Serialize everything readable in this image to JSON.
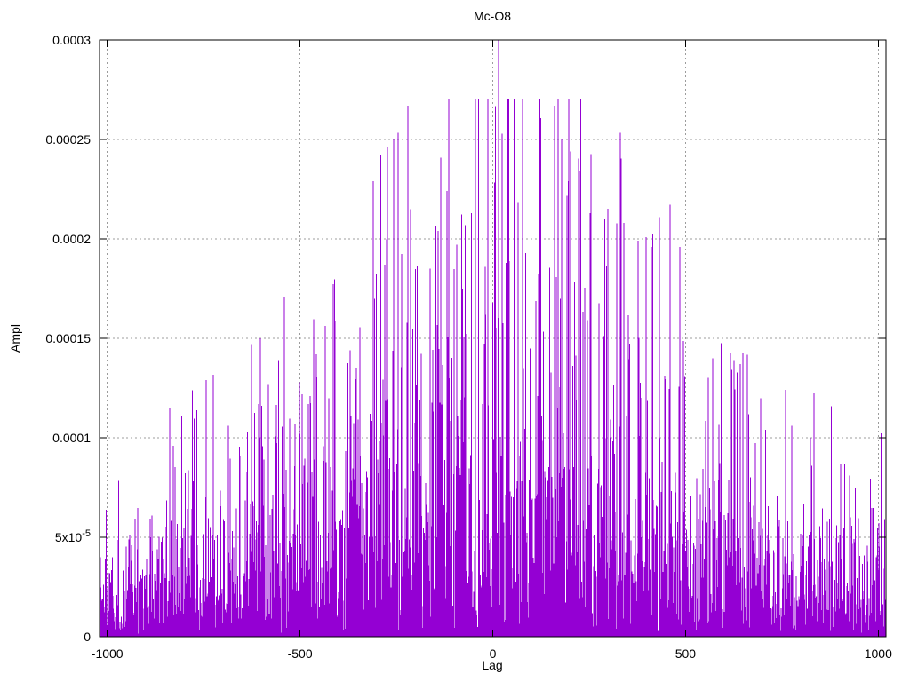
{
  "window": {
    "background": "#ffffff"
  },
  "chart_data": {
    "type": "impulses",
    "title": "Mc-O8",
    "xlabel": "Lag",
    "ylabel": "Ampl",
    "xlim": [
      -1020,
      1020
    ],
    "ylim": [
      0,
      0.0003
    ],
    "grid": true,
    "legend": "none",
    "line_color": "#9400d3",
    "grid_color": "#9c9c9c",
    "border_color": "#000000",
    "xticks": [
      {
        "v": -1000,
        "label": "-1000"
      },
      {
        "v": -500,
        "label": "-500"
      },
      {
        "v": 0,
        "label": "0"
      },
      {
        "v": 500,
        "label": "500"
      },
      {
        "v": 1000,
        "label": "1000"
      }
    ],
    "yticks": [
      {
        "v": 0,
        "label": "0"
      },
      {
        "v": 5e-05,
        "label": "5x10",
        "sup": "-5"
      },
      {
        "v": 0.0001,
        "label": "0.0001"
      },
      {
        "v": 0.00015,
        "label": "0.00015"
      },
      {
        "v": 0.0002,
        "label": "0.0002"
      },
      {
        "v": 0.00025,
        "label": "0.00025"
      },
      {
        "v": 0.0003,
        "label": "0.0003"
      }
    ],
    "series_noise": {
      "description": "dense noise floor of autocorrelation impulses, one per lag",
      "seed": 1337,
      "lag_start": -1020,
      "lag_end": 1020,
      "lag_step": 1,
      "distribution": "exponential",
      "mean_envelope": [
        [
          -1020,
          2.4e-05
        ],
        [
          -850,
          2.7e-05
        ],
        [
          -650,
          3.4e-05
        ],
        [
          -500,
          4.3e-05
        ],
        [
          -350,
          5.4e-05
        ],
        [
          -200,
          6.3e-05
        ],
        [
          -80,
          7e-05
        ],
        [
          80,
          7.2e-05
        ],
        [
          200,
          6.8e-05
        ],
        [
          320,
          6.2e-05
        ],
        [
          400,
          6e-05
        ],
        [
          450,
          5.4e-05
        ],
        [
          520,
          3.8e-05
        ],
        [
          650,
          3.4e-05
        ],
        [
          800,
          3e-05
        ],
        [
          1020,
          2.4e-05
        ]
      ],
      "tail_cap_ratio": 4.2,
      "clip_noise": 0.00027
    },
    "peaks": [
      [
        15,
        0.0003
      ],
      [
        24,
        0.000253
      ],
      [
        66,
        0.000218
      ],
      [
        123,
        0.000256
      ],
      [
        169,
        0.000232
      ],
      [
        202,
        0.000244
      ],
      [
        227,
        0.000234
      ],
      [
        252,
        0.000213
      ],
      [
        340,
        0.000208
      ],
      [
        377,
        0.000199
      ],
      [
        398,
        0.000201
      ],
      [
        412,
        0.000196
      ],
      [
        432,
        0.000211
      ],
      [
        485,
        0.000196
      ],
      [
        571,
        0.00014
      ],
      [
        626,
        0.000139
      ],
      [
        642,
        0.000137
      ],
      [
        760,
        0.000124
      ],
      [
        824,
        0.0001
      ],
      [
        940,
        7.5e-05
      ],
      [
        -20,
        0.000186
      ],
      [
        -93,
        0.000197
      ],
      [
        -119,
        0.000224
      ],
      [
        -142,
        0.000204
      ],
      [
        -220,
        0.000267
      ],
      [
        -280,
        0.000187
      ],
      [
        -310,
        0.000229
      ],
      [
        -458,
        0.000142
      ],
      [
        -501,
        0.000128
      ],
      [
        -582,
        0.000127
      ],
      [
        -626,
        0.000147
      ],
      [
        -829,
        9.6e-05
      ]
    ]
  }
}
